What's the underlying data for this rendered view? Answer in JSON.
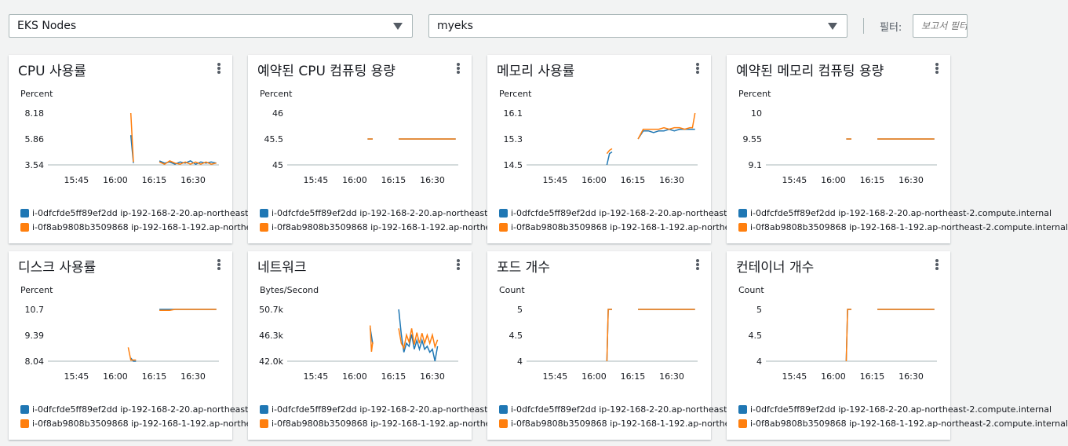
{
  "toolbar": {
    "view_select": "EKS Nodes",
    "cluster_select": "myeks",
    "filter_label": "필터:",
    "filter_placeholder": "보고서 필터"
  },
  "legend": [
    {
      "label": "i-0dfcfde5ff89ef2dd ip-192-168-2-20.ap-northeast-2.compute.internal",
      "color": "#1f77b4"
    },
    {
      "label": "i-0f8ab9808b3509868 ip-192-168-1-192.ap-northeast-2.compute.internal",
      "color": "#ff7f0e"
    }
  ],
  "x_ticks": [
    "15:45",
    "16:00",
    "16:15",
    "16:30"
  ],
  "cards": [
    {
      "title": "CPU 사용률",
      "unit": "Percent",
      "y_ticks": [
        "8.18",
        "5.86",
        "3.54"
      ],
      "ylim": [
        3.54,
        8.18
      ],
      "series": [
        [
          [
            null
          ],
          [
            16.06,
            6.2
          ],
          [
            16.07,
            3.7
          ],
          [
            null
          ],
          [
            16.17,
            3.9
          ],
          [
            16.19,
            3.7
          ],
          [
            16.21,
            3.8
          ],
          [
            16.23,
            3.6
          ],
          [
            16.25,
            3.8
          ],
          [
            16.27,
            3.7
          ],
          [
            16.29,
            3.9
          ],
          [
            16.31,
            3.6
          ],
          [
            16.33,
            3.8
          ],
          [
            16.35,
            3.7
          ],
          [
            16.37,
            3.8
          ],
          [
            16.39,
            3.7
          ]
        ],
        [
          [
            16.06,
            8.18
          ],
          [
            16.07,
            3.8
          ],
          [
            null
          ],
          [
            16.17,
            3.8
          ],
          [
            16.19,
            3.6
          ],
          [
            16.21,
            3.9
          ],
          [
            16.23,
            3.7
          ],
          [
            16.25,
            3.6
          ],
          [
            16.27,
            3.8
          ],
          [
            16.29,
            3.6
          ],
          [
            16.31,
            3.8
          ],
          [
            16.33,
            3.6
          ],
          [
            16.35,
            3.8
          ],
          [
            16.37,
            3.6
          ],
          [
            16.39,
            3.7
          ]
        ]
      ]
    },
    {
      "title": "예약된 CPU 컴퓨팅 용량",
      "unit": "Percent",
      "y_ticks": [
        "46",
        "45.5",
        "45"
      ],
      "ylim": [
        45,
        46
      ],
      "series": [
        [
          [
            16.05,
            45.5
          ],
          [
            16.07,
            45.5
          ],
          [
            null
          ],
          [
            16.17,
            45.5
          ],
          [
            16.39,
            45.5
          ]
        ],
        [
          [
            16.05,
            45.5
          ],
          [
            16.07,
            45.5
          ],
          [
            null
          ],
          [
            16.17,
            45.5
          ],
          [
            16.39,
            45.5
          ]
        ]
      ]
    },
    {
      "title": "메모리 사용률",
      "unit": "Percent",
      "y_ticks": [
        "16.1",
        "15.3",
        "14.5"
      ],
      "ylim": [
        14.5,
        16.1
      ],
      "series": [
        [
          [
            16.05,
            14.5
          ],
          [
            16.06,
            14.85
          ],
          [
            16.07,
            14.9
          ],
          [
            null
          ],
          [
            16.17,
            15.3
          ],
          [
            16.19,
            15.55
          ],
          [
            16.21,
            15.55
          ],
          [
            16.23,
            15.5
          ],
          [
            16.25,
            15.55
          ],
          [
            16.27,
            15.55
          ],
          [
            16.29,
            15.6
          ],
          [
            16.31,
            15.55
          ],
          [
            16.33,
            15.6
          ],
          [
            16.35,
            15.6
          ],
          [
            16.37,
            15.6
          ],
          [
            16.39,
            15.6
          ]
        ],
        [
          [
            16.05,
            14.85
          ],
          [
            16.06,
            14.95
          ],
          [
            16.07,
            15.0
          ],
          [
            null
          ],
          [
            16.17,
            15.3
          ],
          [
            16.19,
            15.6
          ],
          [
            16.21,
            15.6
          ],
          [
            16.23,
            15.6
          ],
          [
            16.25,
            15.6
          ],
          [
            16.27,
            15.65
          ],
          [
            16.29,
            15.6
          ],
          [
            16.31,
            15.65
          ],
          [
            16.33,
            15.65
          ],
          [
            16.35,
            15.6
          ],
          [
            16.37,
            15.65
          ],
          [
            16.38,
            15.65
          ],
          [
            16.39,
            16.1
          ]
        ]
      ]
    },
    {
      "title": "예약된 메모리 컴퓨팅 용량",
      "unit": "Percent",
      "y_ticks": [
        "10",
        "9.55",
        "9.1"
      ],
      "ylim": [
        9.1,
        10
      ],
      "series": [
        [
          [
            16.05,
            9.55
          ],
          [
            16.07,
            9.55
          ],
          [
            null
          ],
          [
            16.17,
            9.55
          ],
          [
            16.39,
            9.55
          ]
        ],
        [
          [
            16.05,
            9.55
          ],
          [
            16.07,
            9.55
          ],
          [
            null
          ],
          [
            16.17,
            9.55
          ],
          [
            16.39,
            9.55
          ]
        ]
      ]
    },
    {
      "title": "디스크 사용률",
      "unit": "Percent",
      "y_ticks": [
        "10.7",
        "9.39",
        "8.04"
      ],
      "ylim": [
        8.04,
        10.7
      ],
      "series": [
        [
          [
            16.06,
            8.2
          ],
          [
            16.07,
            8.04
          ],
          [
            16.08,
            8.04
          ],
          [
            null
          ],
          [
            16.17,
            10.7
          ],
          [
            16.39,
            10.7
          ]
        ],
        [
          [
            16.05,
            8.75
          ],
          [
            16.06,
            8.1
          ],
          [
            16.08,
            8.1
          ],
          [
            null
          ],
          [
            16.17,
            10.65
          ],
          [
            16.21,
            10.65
          ],
          [
            16.23,
            10.7
          ],
          [
            16.39,
            10.7
          ]
        ]
      ]
    },
    {
      "title": "네트워크",
      "unit": "Bytes/Second",
      "y_ticks": [
        "50.7k",
        "46.3k",
        "42.0k"
      ],
      "ylim": [
        42.0,
        50.7
      ],
      "series": [
        [
          [
            16.06,
            47.6
          ],
          [
            16.07,
            44.9
          ],
          [
            null
          ],
          [
            16.17,
            50.7
          ],
          [
            16.18,
            46.5
          ],
          [
            16.19,
            43.5
          ],
          [
            16.2,
            45.0
          ],
          [
            16.21,
            44.5
          ],
          [
            16.22,
            46.5
          ],
          [
            16.23,
            44.0
          ],
          [
            16.24,
            45.5
          ],
          [
            16.25,
            44.0
          ],
          [
            16.26,
            45.5
          ],
          [
            16.27,
            44.0
          ],
          [
            16.28,
            44.5
          ],
          [
            16.29,
            43.5
          ],
          [
            16.3,
            44.0
          ],
          [
            16.31,
            42.0
          ],
          [
            16.32,
            44.5
          ]
        ],
        [
          [
            16.06,
            48.0
          ],
          [
            16.065,
            43.6
          ],
          [
            16.07,
            45.2
          ],
          [
            null
          ],
          [
            16.17,
            47.5
          ],
          [
            16.18,
            45.0
          ],
          [
            16.19,
            44.2
          ],
          [
            16.2,
            46.4
          ],
          [
            16.21,
            45.2
          ],
          [
            16.22,
            47.5
          ],
          [
            16.23,
            44.8
          ],
          [
            16.24,
            46.8
          ],
          [
            16.25,
            45.0
          ],
          [
            16.26,
            46.7
          ],
          [
            16.27,
            45.0
          ],
          [
            16.28,
            46.4
          ],
          [
            16.29,
            45.0
          ],
          [
            16.3,
            46.4
          ],
          [
            16.31,
            44.4
          ],
          [
            16.32,
            45.6
          ]
        ]
      ]
    },
    {
      "title": "포드 개수",
      "unit": "Count",
      "y_ticks": [
        "5",
        "4.5",
        "4"
      ],
      "ylim": [
        4,
        5
      ],
      "series": [
        [
          [
            16.05,
            4
          ],
          [
            16.055,
            5
          ],
          [
            16.07,
            5
          ],
          [
            null
          ],
          [
            16.17,
            5
          ],
          [
            16.39,
            5
          ]
        ],
        [
          [
            16.05,
            4
          ],
          [
            16.055,
            5
          ],
          [
            16.07,
            5
          ],
          [
            null
          ],
          [
            16.17,
            5
          ],
          [
            16.39,
            5
          ]
        ]
      ]
    },
    {
      "title": "컨테이너 개수",
      "unit": "Count",
      "y_ticks": [
        "5",
        "4.5",
        "4"
      ],
      "ylim": [
        4,
        5
      ],
      "series": [
        [
          [
            16.05,
            4
          ],
          [
            16.055,
            5
          ],
          [
            16.07,
            5
          ],
          [
            null
          ],
          [
            16.17,
            5
          ],
          [
            16.39,
            5
          ]
        ],
        [
          [
            16.05,
            4
          ],
          [
            16.055,
            5
          ],
          [
            16.07,
            5
          ],
          [
            null
          ],
          [
            16.17,
            5
          ],
          [
            16.39,
            5
          ]
        ]
      ]
    }
  ]
}
